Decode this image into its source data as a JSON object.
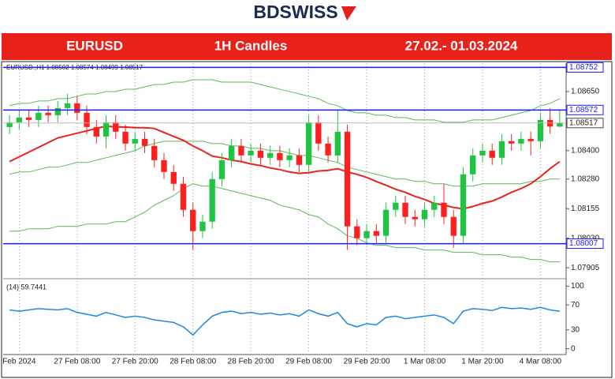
{
  "header": {
    "logo": "BDSWISS"
  },
  "banner": {
    "pair": "EURUSD",
    "timeframe": "1H Candles",
    "dates": "27.02.- 01.03.2024"
  },
  "chart_data": [
    {
      "type": "candlestick",
      "info": "EURUSD.,H1  1.08502 1.08574 1.08499 1.08517",
      "categories": [
        null,
        "Feb 2024",
        null,
        null,
        null,
        null,
        null,
        "27 Feb 08:00",
        null,
        null,
        null,
        null,
        null,
        "27 Feb 20:00",
        null,
        null,
        null,
        null,
        null,
        "28 Feb 08:00",
        null,
        null,
        null,
        null,
        null,
        "28 Feb 20:00",
        null,
        null,
        null,
        null,
        null,
        "29 Feb 08:00",
        null,
        null,
        null,
        null,
        null,
        "29 Feb 20:00",
        null,
        null,
        null,
        null,
        null,
        "1 Mar 08:00",
        null,
        null,
        null,
        null,
        null,
        "1 Mar 20:00",
        null,
        null,
        null,
        null,
        null,
        "4 Mar 08:00",
        null,
        null
      ],
      "open": [
        1.085,
        1.0852,
        1.0854,
        1.0853,
        1.0856,
        1.0855,
        1.0858,
        1.086,
        1.0856,
        1.085,
        1.0846,
        1.0852,
        1.0848,
        1.0843,
        1.0845,
        1.0842,
        1.0836,
        1.0831,
        1.0826,
        1.0815,
        1.0806,
        1.081,
        1.0828,
        1.0836,
        1.0842,
        1.0838,
        1.084,
        1.0837,
        1.0839,
        1.0836,
        1.0838,
        1.0834,
        1.0852,
        1.0843,
        1.0838,
        1.0848,
        1.0808,
        1.0803,
        1.0806,
        1.0804,
        1.0815,
        1.0818,
        1.0812,
        1.0811,
        1.0815,
        1.0818,
        1.0812,
        1.0804,
        1.083,
        1.0838,
        1.084,
        1.0837,
        1.0844,
        1.0843,
        1.0845,
        1.0844,
        1.0853,
        1.08502
      ],
      "high": [
        1.0855,
        1.0857,
        1.0857,
        1.0859,
        1.0859,
        1.0861,
        1.0864,
        1.0863,
        1.0859,
        1.0853,
        1.0855,
        1.0855,
        1.0851,
        1.0848,
        1.0848,
        1.0845,
        1.0839,
        1.0834,
        1.0829,
        1.0818,
        1.0813,
        1.0831,
        1.0839,
        1.0845,
        1.0845,
        1.0843,
        1.0843,
        1.0842,
        1.0842,
        1.0841,
        1.0841,
        1.0855,
        1.0855,
        1.0846,
        1.0857,
        1.0851,
        1.0811,
        1.0809,
        1.0809,
        1.0818,
        1.0821,
        1.0821,
        1.0815,
        1.0818,
        1.0821,
        1.0826,
        1.0815,
        1.0833,
        1.0841,
        1.0843,
        1.0843,
        1.0847,
        1.0847,
        1.0848,
        1.0848,
        1.0856,
        1.0858,
        1.08574
      ],
      "low": [
        1.0847,
        1.0849,
        1.085,
        1.085,
        1.0852,
        1.0852,
        1.0855,
        1.0853,
        1.0847,
        1.0843,
        1.0841,
        1.0845,
        1.084,
        1.084,
        1.0839,
        1.0833,
        1.0828,
        1.0823,
        1.0812,
        1.0798,
        1.0803,
        1.0807,
        1.0825,
        1.0833,
        1.0835,
        1.0835,
        1.0834,
        1.0834,
        1.0833,
        1.0833,
        1.0831,
        1.0831,
        1.084,
        1.0835,
        1.0835,
        1.0798,
        1.08,
        1.08,
        1.0801,
        1.0801,
        1.0812,
        1.0809,
        1.0808,
        1.0808,
        1.0812,
        1.0809,
        1.0799,
        1.0801,
        1.0827,
        1.0835,
        1.0834,
        1.0834,
        1.084,
        1.084,
        1.0838,
        1.0841,
        1.08472,
        1.08499
      ],
      "close": [
        1.0852,
        1.0854,
        1.0853,
        1.0856,
        1.0855,
        1.0858,
        1.086,
        1.0856,
        1.085,
        1.0846,
        1.0852,
        1.0848,
        1.0843,
        1.0845,
        1.0842,
        1.0836,
        1.0831,
        1.0826,
        1.0815,
        1.0806,
        1.081,
        1.0828,
        1.0836,
        1.0842,
        1.0838,
        1.084,
        1.0837,
        1.0839,
        1.0836,
        1.0838,
        1.0834,
        1.0852,
        1.0843,
        1.0838,
        1.0848,
        1.0808,
        1.0803,
        1.0806,
        1.0804,
        1.0815,
        1.0818,
        1.0812,
        1.0811,
        1.0815,
        1.0818,
        1.0812,
        1.0804,
        1.083,
        1.0838,
        1.084,
        1.0837,
        1.0844,
        1.0843,
        1.0845,
        1.0844,
        1.0853,
        1.08502,
        1.08517
      ],
      "up_color": "#1fc443",
      "down_color": "#ff1f1f",
      "ma": {
        "color": "#e8231f",
        "values": [
          1.08354,
          1.08374,
          1.08394,
          1.08414,
          1.08434,
          1.08454,
          1.08464,
          1.08474,
          1.08484,
          1.08494,
          1.08504,
          1.085,
          1.085,
          1.08497,
          1.08497,
          1.08494,
          1.08477,
          1.0846,
          1.08444,
          1.0842,
          1.084,
          1.08377,
          1.0837,
          1.0836,
          1.08354,
          1.08344,
          1.08337,
          1.08327,
          1.0832,
          1.0831,
          1.08304,
          1.08307,
          1.08314,
          1.08317,
          1.08324,
          1.0831,
          1.083,
          1.08287,
          1.0827,
          1.08254,
          1.08237,
          1.08224,
          1.08207,
          1.08194,
          1.08177,
          1.0817,
          1.0816,
          1.08154,
          1.08164,
          1.08177,
          1.08187,
          1.08204,
          1.08224,
          1.0824,
          1.0826,
          1.0829,
          1.08324,
          1.08354
        ]
      },
      "bands": {
        "color": "#5cb85c",
        "upper": [
          1.0859,
          1.086,
          1.086,
          1.0861,
          1.0861,
          1.0862,
          1.0862,
          1.0863,
          1.0864,
          1.0864,
          1.0865,
          1.0865,
          1.0866,
          1.0866,
          1.0867,
          1.0868,
          1.0868,
          1.0869,
          1.0869,
          1.087,
          1.087,
          1.087,
          1.0869,
          1.0869,
          1.0869,
          1.0869,
          1.0868,
          1.0867,
          1.0866,
          1.0865,
          1.0864,
          1.0863,
          1.0862,
          1.086,
          1.0859,
          1.0857,
          1.0856,
          1.0856,
          1.0855,
          1.0855,
          1.0854,
          1.0854,
          1.0853,
          1.0853,
          1.0853,
          1.0852,
          1.0852,
          1.0852,
          1.0853,
          1.0853,
          1.0853,
          1.0854,
          1.0855,
          1.0856,
          1.0857,
          1.0859,
          1.086,
          1.0862
        ],
        "middle": [
          1.083,
          1.0831,
          1.0831,
          1.0832,
          1.0833,
          1.0833,
          1.0834,
          1.0835,
          1.0835,
          1.0836,
          1.0837,
          1.0838,
          1.0839,
          1.084,
          1.0842,
          1.0843,
          1.0844,
          1.0844,
          1.0844,
          1.0844,
          1.0844,
          1.0843,
          1.0843,
          1.0842,
          1.0842,
          1.0841,
          1.0841,
          1.084,
          1.084,
          1.0839,
          1.0838,
          1.0838,
          1.0837,
          1.0836,
          1.0835,
          1.0833,
          1.0832,
          1.0831,
          1.083,
          1.0829,
          1.0828,
          1.0828,
          1.0827,
          1.0827,
          1.0826,
          1.0826,
          1.0825,
          1.0825,
          1.0825,
          1.0826,
          1.0826,
          1.0826,
          1.0826,
          1.0826,
          1.0827,
          1.0827,
          1.0828,
          1.0828
        ],
        "lower": [
          1.0806,
          1.0806,
          1.0807,
          1.0807,
          1.0807,
          1.0808,
          1.0808,
          1.0808,
          1.0809,
          1.0809,
          1.0809,
          1.081,
          1.081,
          1.0812,
          1.0814,
          1.0817,
          1.0819,
          1.0821,
          1.0824,
          1.0826,
          1.0825,
          1.0825,
          1.0824,
          1.0823,
          1.0822,
          1.0821,
          1.082,
          1.0819,
          1.0817,
          1.0816,
          1.0815,
          1.0813,
          1.0812,
          1.0809,
          1.0807,
          1.0804,
          1.0803,
          1.0801,
          1.08,
          1.08,
          1.0799,
          1.0799,
          1.0799,
          1.0798,
          1.0798,
          1.0798,
          1.0797,
          1.0797,
          1.0797,
          1.0796,
          1.0796,
          1.0796,
          1.0795,
          1.0795,
          1.0794,
          1.0794,
          1.0793,
          1.0793
        ]
      },
      "levels": [
        1.08752,
        1.08572,
        1.08007
      ],
      "level_color": "#1a1aff",
      "current": 1.08517,
      "ylim": [
        1.07862,
        1.0877
      ],
      "yticks": [
        {
          "value": 1.0865,
          "label": "1.08650"
        },
        {
          "value": 1.084,
          "label": "1.08400"
        },
        {
          "value": 1.0828,
          "label": "1.08280"
        },
        {
          "value": 1.08155,
          "label": "1.08155"
        },
        {
          "value": 1.0803,
          "label": "1.08030"
        },
        {
          "value": 1.07905,
          "label": "1.07905"
        }
      ]
    },
    {
      "type": "line",
      "title": "(14) 59.7441",
      "color": "#1e88e5",
      "values": [
        62,
        60,
        62,
        64,
        63,
        62,
        64,
        58,
        55,
        52,
        58,
        54,
        50,
        52,
        50,
        46,
        44,
        42,
        35,
        22,
        38,
        52,
        58,
        60,
        56,
        58,
        55,
        57,
        54,
        56,
        52,
        62,
        56,
        52,
        58,
        40,
        35,
        40,
        38,
        50,
        52,
        48,
        50,
        52,
        54,
        50,
        40,
        60,
        64,
        63,
        61,
        66,
        64,
        65,
        63,
        66,
        62,
        59.7441
      ],
      "ylim": [
        -8,
        108
      ],
      "yticks": [
        100,
        70,
        30,
        0
      ]
    }
  ]
}
